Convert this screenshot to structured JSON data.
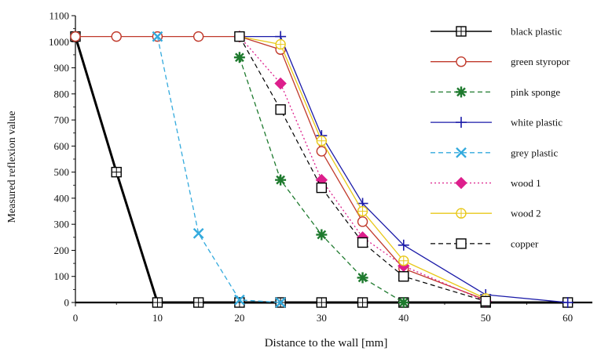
{
  "chart_data": {
    "type": "line",
    "title": "",
    "xlabel": "Distance to the wall [mm]",
    "ylabel": "Measured reflexion value",
    "xlim": [
      0,
      63
    ],
    "ylim": [
      0,
      1100
    ],
    "xticks": [
      0,
      10,
      20,
      30,
      40,
      50,
      60
    ],
    "yticks": [
      0,
      100,
      200,
      300,
      400,
      500,
      600,
      700,
      800,
      900,
      1000,
      1100
    ],
    "grid": false,
    "legend_position": "top-right",
    "series": [
      {
        "name": "black plastic",
        "color": "#000000",
        "dash": "solid",
        "marker": "square-plus",
        "width": 3,
        "x": [
          0,
          5,
          10,
          15,
          20,
          25,
          30,
          35,
          40,
          50,
          60
        ],
        "y": [
          1020,
          500,
          0,
          0,
          0,
          0,
          0,
          0,
          0,
          0,
          0
        ]
      },
      {
        "name": "green styropor",
        "color": "#c0392b",
        "dash": "solid",
        "marker": "circle",
        "width": 1.3,
        "x": [
          0,
          5,
          10,
          15,
          20,
          25,
          30,
          35,
          40,
          50
        ],
        "y": [
          1020,
          1020,
          1020,
          1020,
          1020,
          970,
          580,
          310,
          130,
          10
        ]
      },
      {
        "name": "pink sponge",
        "color": "#1e7a2e",
        "dash": "dashed",
        "marker": "star",
        "width": 1.3,
        "x": [
          20,
          25,
          30,
          35,
          40
        ],
        "y": [
          940,
          470,
          260,
          95,
          0
        ]
      },
      {
        "name": "white plastic",
        "color": "#1a1aa8",
        "dash": "solid",
        "marker": "plus",
        "width": 1.3,
        "x": [
          20,
          25,
          30,
          35,
          40,
          50,
          60
        ],
        "y": [
          1020,
          1020,
          640,
          380,
          220,
          30,
          0
        ]
      },
      {
        "name": "grey plastic",
        "color": "#33aadd",
        "dash": "dashed",
        "marker": "x",
        "width": 1.3,
        "x": [
          10,
          15,
          20,
          25
        ],
        "y": [
          1020,
          265,
          10,
          0
        ]
      },
      {
        "name": "wood 1",
        "color": "#dd1f8c",
        "dash": "dotted",
        "marker": "diamond",
        "width": 1.3,
        "x": [
          20,
          25,
          30,
          35,
          40,
          50
        ],
        "y": [
          1020,
          840,
          470,
          250,
          140,
          5
        ]
      },
      {
        "name": "wood 2",
        "color": "#e8c81a",
        "dash": "solid",
        "marker": "circle-plus",
        "width": 1.3,
        "x": [
          20,
          25,
          30,
          35,
          40,
          50
        ],
        "y": [
          1020,
          990,
          620,
          350,
          160,
          15
        ]
      },
      {
        "name": "copper",
        "color": "#000000",
        "dash": "dashed",
        "marker": "square",
        "width": 1.2,
        "x": [
          20,
          25,
          30,
          35,
          40,
          50
        ],
        "y": [
          1020,
          740,
          440,
          230,
          100,
          5
        ]
      }
    ]
  }
}
